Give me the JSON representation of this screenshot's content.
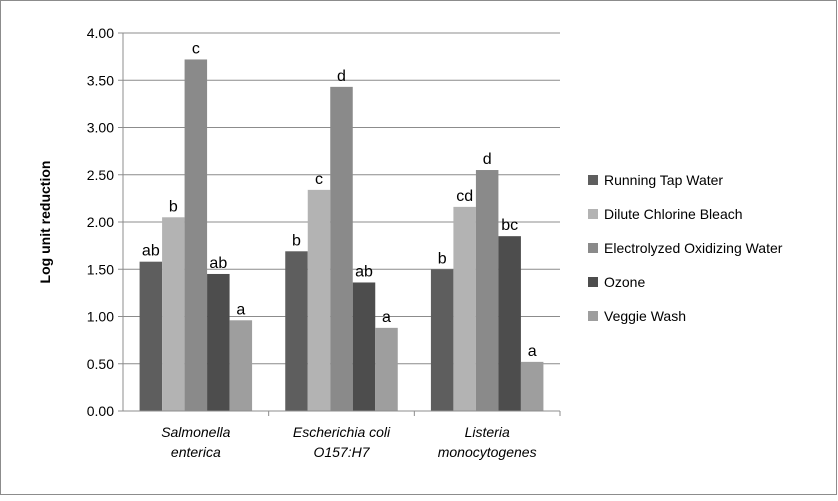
{
  "chart_data": {
    "type": "bar",
    "title": "",
    "xlabel": "",
    "ylabel": "Log unit reduction",
    "ylim": [
      0,
      4.0
    ],
    "ytick_step": 0.5,
    "yticks": [
      "0.00",
      "0.50",
      "1.00",
      "1.50",
      "2.00",
      "2.50",
      "3.00",
      "3.50",
      "4.00"
    ],
    "grid": "horizontal",
    "legend_position": "right",
    "categories": [
      [
        "Salmonella",
        "enterica"
      ],
      [
        "Escherichia coli",
        "O157:H7"
      ],
      [
        "Listeria",
        "monocytogenes"
      ]
    ],
    "series": [
      {
        "name": "Running Tap Water",
        "color": "#5e5e5e",
        "values": [
          1.58,
          1.69,
          1.5
        ],
        "labels": [
          "ab",
          "b",
          "b"
        ]
      },
      {
        "name": "Dilute Chlorine Bleach",
        "color": "#b3b3b3",
        "values": [
          2.05,
          2.34,
          2.16
        ],
        "labels": [
          "b",
          "c",
          "cd"
        ]
      },
      {
        "name": "Electrolyzed Oxidizing Water",
        "color": "#8a8a8a",
        "values": [
          3.72,
          3.43,
          2.55
        ],
        "labels": [
          "c",
          "d",
          "d"
        ]
      },
      {
        "name": "Ozone",
        "color": "#4d4d4d",
        "values": [
          1.45,
          1.36,
          1.85
        ],
        "labels": [
          "ab",
          "ab",
          "bc"
        ]
      },
      {
        "name": "Veggie Wash",
        "color": "#9e9e9e",
        "values": [
          0.96,
          0.88,
          0.52
        ],
        "labels": [
          "a",
          "a",
          "a"
        ]
      }
    ]
  }
}
